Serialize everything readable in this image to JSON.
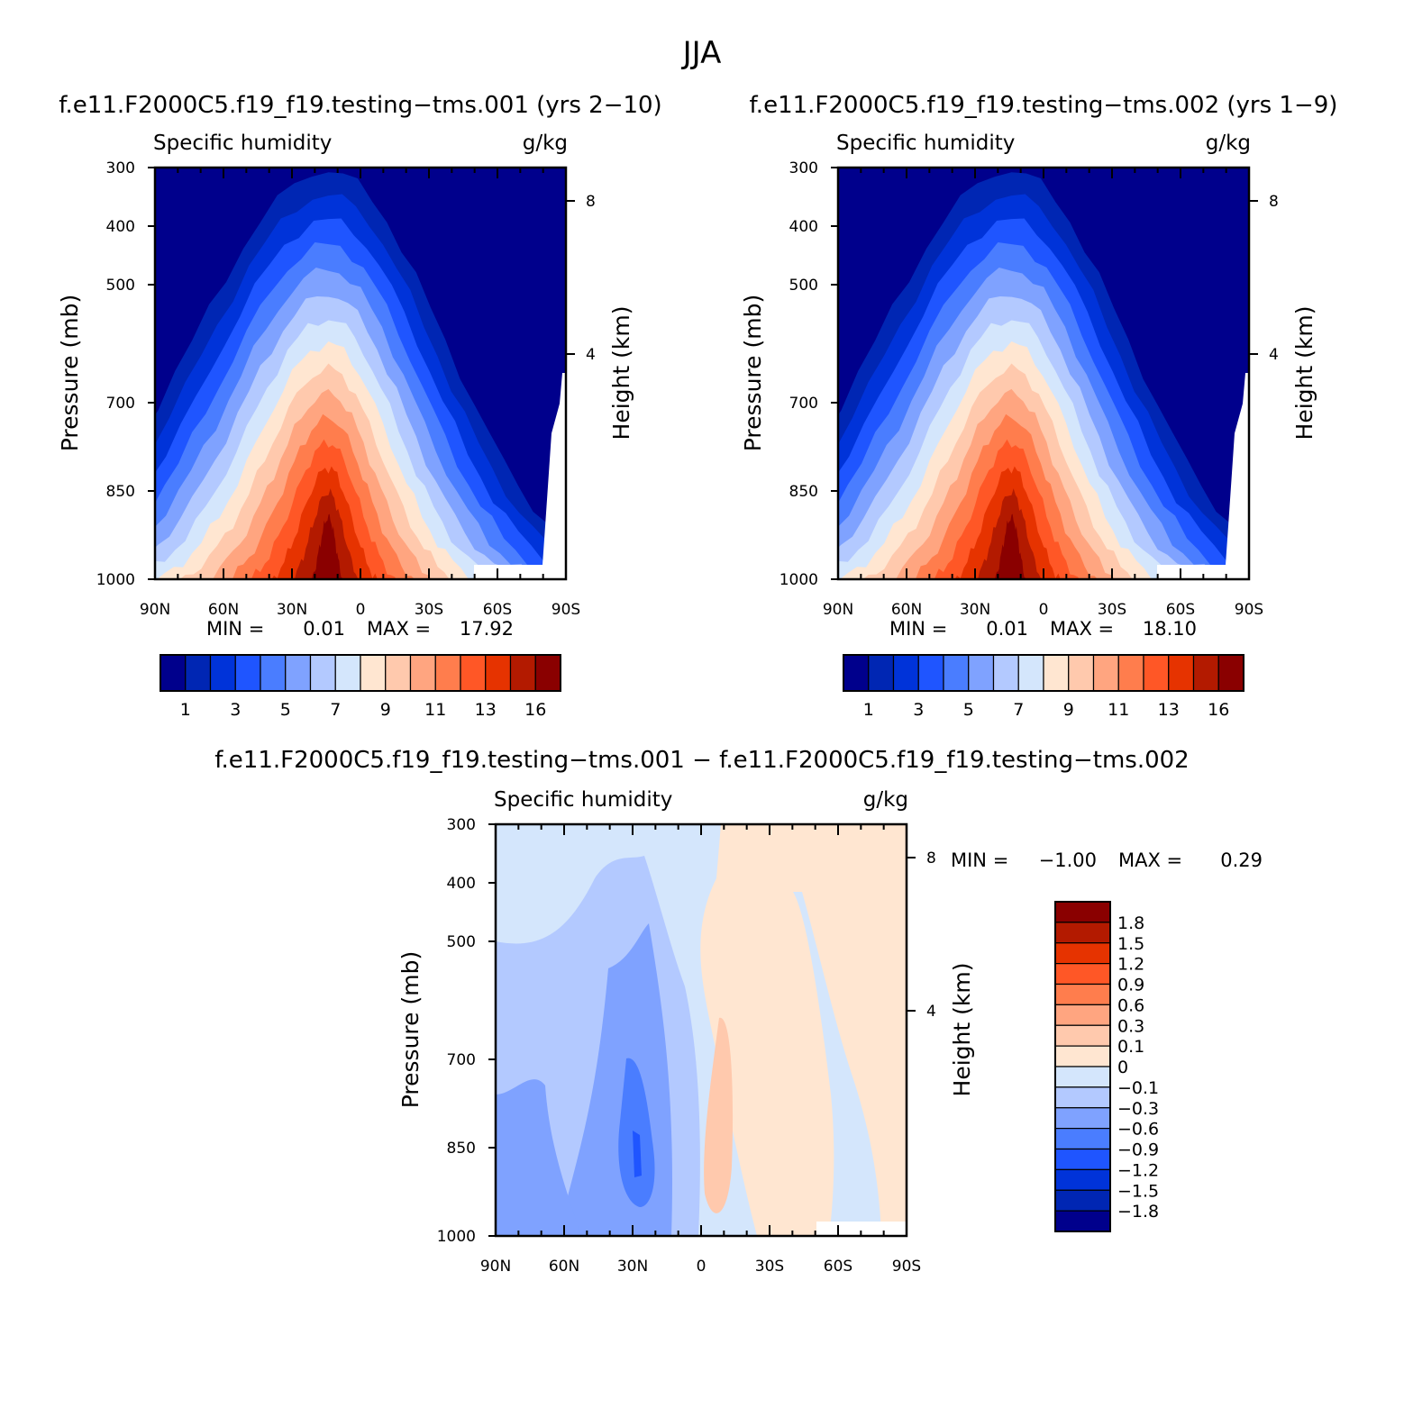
{
  "page_title": "JJA",
  "x_ticks": [
    "90N",
    "60N",
    "30N",
    "0",
    "30S",
    "60S",
    "90S"
  ],
  "y_ticks": [
    "300",
    "400",
    "500",
    "700",
    "850",
    "1000"
  ],
  "height_ticks": [
    "8",
    "4"
  ],
  "chart_data": [
    {
      "type": "heatmap",
      "title": "f.e11.F2000C5.f19_f19.testing−tms.001 (yrs 2−10)",
      "left_label": "Specific humidity",
      "right_label": "g/kg",
      "ylabel": "Pressure (mb)",
      "ylabel2": "Height (km)",
      "xlim": [
        -90,
        90
      ],
      "ylim": [
        1000,
        300
      ],
      "stats": {
        "min_label": "MIN =",
        "min": "0.01",
        "max_label": "MAX =",
        "max": "17.92"
      },
      "colorbar_labels": [
        "1",
        "3",
        "5",
        "7",
        "9",
        "11",
        "13",
        "16"
      ]
    },
    {
      "type": "heatmap",
      "title": "f.e11.F2000C5.f19_f19.testing−tms.002 (yrs 1−9)",
      "left_label": "Specific humidity",
      "right_label": "g/kg",
      "ylabel": "Pressure (mb)",
      "ylabel2": "Height (km)",
      "xlim": [
        -90,
        90
      ],
      "ylim": [
        1000,
        300
      ],
      "stats": {
        "min_label": "MIN =",
        "min": "0.01",
        "max_label": "MAX =",
        "max": "18.10"
      },
      "colorbar_labels": [
        "1",
        "3",
        "5",
        "7",
        "9",
        "11",
        "13",
        "16"
      ]
    },
    {
      "type": "heatmap",
      "title": "f.e11.F2000C5.f19_f19.testing−tms.001 − f.e11.F2000C5.f19_f19.testing−tms.002",
      "left_label": "Specific humidity",
      "right_label": "g/kg",
      "ylabel": "Pressure (mb)",
      "ylabel2": "Height (km)",
      "xlim": [
        -90,
        90
      ],
      "ylim": [
        1000,
        300
      ],
      "stats": {
        "min_label": "MIN =",
        "min": "−1.00",
        "max_label": "MAX =",
        "max": "0.29"
      },
      "colorbar_labels": [
        "1.8",
        "1.5",
        "1.2",
        "0.9",
        "0.6",
        "0.3",
        "0.1",
        "0",
        "−0.1",
        "−0.3",
        "−0.6",
        "−0.9",
        "−1.2",
        "−1.5",
        "−1.8"
      ]
    }
  ],
  "palette": [
    "#00008c",
    "#0026b3",
    "#0033d9",
    "#1f55ff",
    "#4a7dff",
    "#7fa2ff",
    "#b3c9ff",
    "#d4e6fc",
    "#ffe6d1",
    "#ffc9ad",
    "#ffa580",
    "#ff7d4d",
    "#ff5726",
    "#e63300",
    "#b31a00",
    "#8a0000"
  ]
}
